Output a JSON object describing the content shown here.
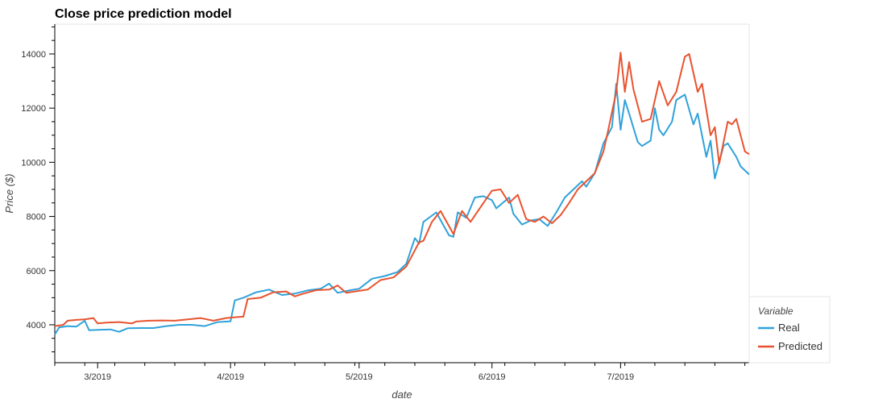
{
  "chart_data": {
    "type": "line",
    "title": "Close price prediction model",
    "xlabel": "date",
    "ylabel": "Price ($)",
    "x_start": "2019-02-19",
    "x_end": "2019-07-31",
    "x_ticks": [
      {
        "date": "2019-03-01",
        "label": "3/2019"
      },
      {
        "date": "2019-04-01",
        "label": "4/2019"
      },
      {
        "date": "2019-05-01",
        "label": "5/2019"
      },
      {
        "date": "2019-06-01",
        "label": "6/2019"
      },
      {
        "date": "2019-07-01",
        "label": "7/2019"
      }
    ],
    "ylim": [
      2600,
      15100
    ],
    "y_ticks": [
      4000,
      6000,
      8000,
      10000,
      12000,
      14000
    ],
    "grid": false,
    "legend": {
      "title": "Variable",
      "placement": "bottom-right, outside plot"
    },
    "series": [
      {
        "name": "Real",
        "color": "#30a2da",
        "points": [
          [
            "2019-02-19",
            3640
          ],
          [
            "2019-02-20",
            3900
          ],
          [
            "2019-02-22",
            3950
          ],
          [
            "2019-02-24",
            3930
          ],
          [
            "2019-02-26",
            4150
          ],
          [
            "2019-02-27",
            3800
          ],
          [
            "2019-03-01",
            3810
          ],
          [
            "2019-03-04",
            3830
          ],
          [
            "2019-03-06",
            3740
          ],
          [
            "2019-03-08",
            3870
          ],
          [
            "2019-03-11",
            3880
          ],
          [
            "2019-03-14",
            3880
          ],
          [
            "2019-03-17",
            3950
          ],
          [
            "2019-03-20",
            4000
          ],
          [
            "2019-03-23",
            4000
          ],
          [
            "2019-03-26",
            3950
          ],
          [
            "2019-03-29",
            4100
          ],
          [
            "2019-04-01",
            4130
          ],
          [
            "2019-04-02",
            4900
          ],
          [
            "2019-04-04",
            5000
          ],
          [
            "2019-04-07",
            5200
          ],
          [
            "2019-04-10",
            5300
          ],
          [
            "2019-04-13",
            5100
          ],
          [
            "2019-04-16",
            5150
          ],
          [
            "2019-04-19",
            5270
          ],
          [
            "2019-04-22",
            5330
          ],
          [
            "2019-04-24",
            5520
          ],
          [
            "2019-04-26",
            5180
          ],
          [
            "2019-04-29",
            5280
          ],
          [
            "2019-05-01",
            5330
          ],
          [
            "2019-05-04",
            5700
          ],
          [
            "2019-05-07",
            5800
          ],
          [
            "2019-05-10",
            5950
          ],
          [
            "2019-05-12",
            6250
          ],
          [
            "2019-05-14",
            7200
          ],
          [
            "2019-05-15",
            7000
          ],
          [
            "2019-05-16",
            7800
          ],
          [
            "2019-05-19",
            8150
          ],
          [
            "2019-05-22",
            7300
          ],
          [
            "2019-05-23",
            7250
          ],
          [
            "2019-05-24",
            8150
          ],
          [
            "2019-05-26",
            7950
          ],
          [
            "2019-05-28",
            8700
          ],
          [
            "2019-05-30",
            8750
          ],
          [
            "2019-06-01",
            8600
          ],
          [
            "2019-06-02",
            8300
          ],
          [
            "2019-06-05",
            8700
          ],
          [
            "2019-06-06",
            8100
          ],
          [
            "2019-06-08",
            7700
          ],
          [
            "2019-06-10",
            7850
          ],
          [
            "2019-06-12",
            7900
          ],
          [
            "2019-06-14",
            7650
          ],
          [
            "2019-06-16",
            8150
          ],
          [
            "2019-06-18",
            8700
          ],
          [
            "2019-06-20",
            9000
          ],
          [
            "2019-06-22",
            9300
          ],
          [
            "2019-06-23",
            9100
          ],
          [
            "2019-06-25",
            9600
          ],
          [
            "2019-06-27",
            10700
          ],
          [
            "2019-06-29",
            11300
          ],
          [
            "2019-06-30",
            12900
          ],
          [
            "2019-07-01",
            11200
          ],
          [
            "2019-07-02",
            12300
          ],
          [
            "2019-07-03",
            11800
          ],
          [
            "2019-07-05",
            10750
          ],
          [
            "2019-07-06",
            10600
          ],
          [
            "2019-07-08",
            10800
          ],
          [
            "2019-07-09",
            12000
          ],
          [
            "2019-07-10",
            11200
          ],
          [
            "2019-07-11",
            11000
          ],
          [
            "2019-07-13",
            11500
          ],
          [
            "2019-07-14",
            12300
          ],
          [
            "2019-07-16",
            12500
          ],
          [
            "2019-07-18",
            11400
          ],
          [
            "2019-07-19",
            11800
          ],
          [
            "2019-07-21",
            10200
          ],
          [
            "2019-07-22",
            10800
          ],
          [
            "2019-07-23",
            9400
          ],
          [
            "2019-07-25",
            10600
          ],
          [
            "2019-07-26",
            10700
          ],
          [
            "2019-07-28",
            10200
          ],
          [
            "2019-07-29",
            9850
          ],
          [
            "2019-07-31",
            9550
          ]
        ]
      },
      {
        "name": "Predicted",
        "color": "#e8532f",
        "points": [
          [
            "2019-02-19",
            3950
          ],
          [
            "2019-02-21",
            4000
          ],
          [
            "2019-02-22",
            4150
          ],
          [
            "2019-02-24",
            4180
          ],
          [
            "2019-02-26",
            4200
          ],
          [
            "2019-02-28",
            4250
          ],
          [
            "2019-03-01",
            4050
          ],
          [
            "2019-03-03",
            4080
          ],
          [
            "2019-03-06",
            4100
          ],
          [
            "2019-03-09",
            4050
          ],
          [
            "2019-03-10",
            4120
          ],
          [
            "2019-03-13",
            4150
          ],
          [
            "2019-03-16",
            4160
          ],
          [
            "2019-03-19",
            4150
          ],
          [
            "2019-03-22",
            4200
          ],
          [
            "2019-03-25",
            4250
          ],
          [
            "2019-03-28",
            4150
          ],
          [
            "2019-03-31",
            4250
          ],
          [
            "2019-04-02",
            4280
          ],
          [
            "2019-04-04",
            4300
          ],
          [
            "2019-04-05",
            4950
          ],
          [
            "2019-04-08",
            5000
          ],
          [
            "2019-04-11",
            5200
          ],
          [
            "2019-04-14",
            5230
          ],
          [
            "2019-04-16",
            5050
          ],
          [
            "2019-04-18",
            5150
          ],
          [
            "2019-04-21",
            5280
          ],
          [
            "2019-04-24",
            5300
          ],
          [
            "2019-04-26",
            5450
          ],
          [
            "2019-04-28",
            5180
          ],
          [
            "2019-04-30",
            5230
          ],
          [
            "2019-05-03",
            5300
          ],
          [
            "2019-05-06",
            5650
          ],
          [
            "2019-05-09",
            5750
          ],
          [
            "2019-05-12",
            6150
          ],
          [
            "2019-05-15",
            7050
          ],
          [
            "2019-05-16",
            7100
          ],
          [
            "2019-05-18",
            7800
          ],
          [
            "2019-05-20",
            8200
          ],
          [
            "2019-05-23",
            7350
          ],
          [
            "2019-05-25",
            8200
          ],
          [
            "2019-05-27",
            7800
          ],
          [
            "2019-05-30",
            8500
          ],
          [
            "2019-06-01",
            8950
          ],
          [
            "2019-06-03",
            9000
          ],
          [
            "2019-06-05",
            8500
          ],
          [
            "2019-06-07",
            8800
          ],
          [
            "2019-06-09",
            7900
          ],
          [
            "2019-06-11",
            7800
          ],
          [
            "2019-06-13",
            8000
          ],
          [
            "2019-06-15",
            7750
          ],
          [
            "2019-06-17",
            8050
          ],
          [
            "2019-06-19",
            8500
          ],
          [
            "2019-06-21",
            9000
          ],
          [
            "2019-06-23",
            9300
          ],
          [
            "2019-06-25",
            9600
          ],
          [
            "2019-06-27",
            10400
          ],
          [
            "2019-06-28",
            11100
          ],
          [
            "2019-06-30",
            12600
          ],
          [
            "2019-07-01",
            14050
          ],
          [
            "2019-07-02",
            12600
          ],
          [
            "2019-07-03",
            13700
          ],
          [
            "2019-07-04",
            12700
          ],
          [
            "2019-07-06",
            11500
          ],
          [
            "2019-07-08",
            11600
          ],
          [
            "2019-07-10",
            13000
          ],
          [
            "2019-07-12",
            12100
          ],
          [
            "2019-07-14",
            12600
          ],
          [
            "2019-07-16",
            13900
          ],
          [
            "2019-07-17",
            14000
          ],
          [
            "2019-07-19",
            12600
          ],
          [
            "2019-07-20",
            12900
          ],
          [
            "2019-07-22",
            11000
          ],
          [
            "2019-07-23",
            11300
          ],
          [
            "2019-07-24",
            9950
          ],
          [
            "2019-07-26",
            11500
          ],
          [
            "2019-07-27",
            11400
          ],
          [
            "2019-07-28",
            11600
          ],
          [
            "2019-07-30",
            10400
          ],
          [
            "2019-07-31",
            10300
          ]
        ]
      }
    ]
  }
}
